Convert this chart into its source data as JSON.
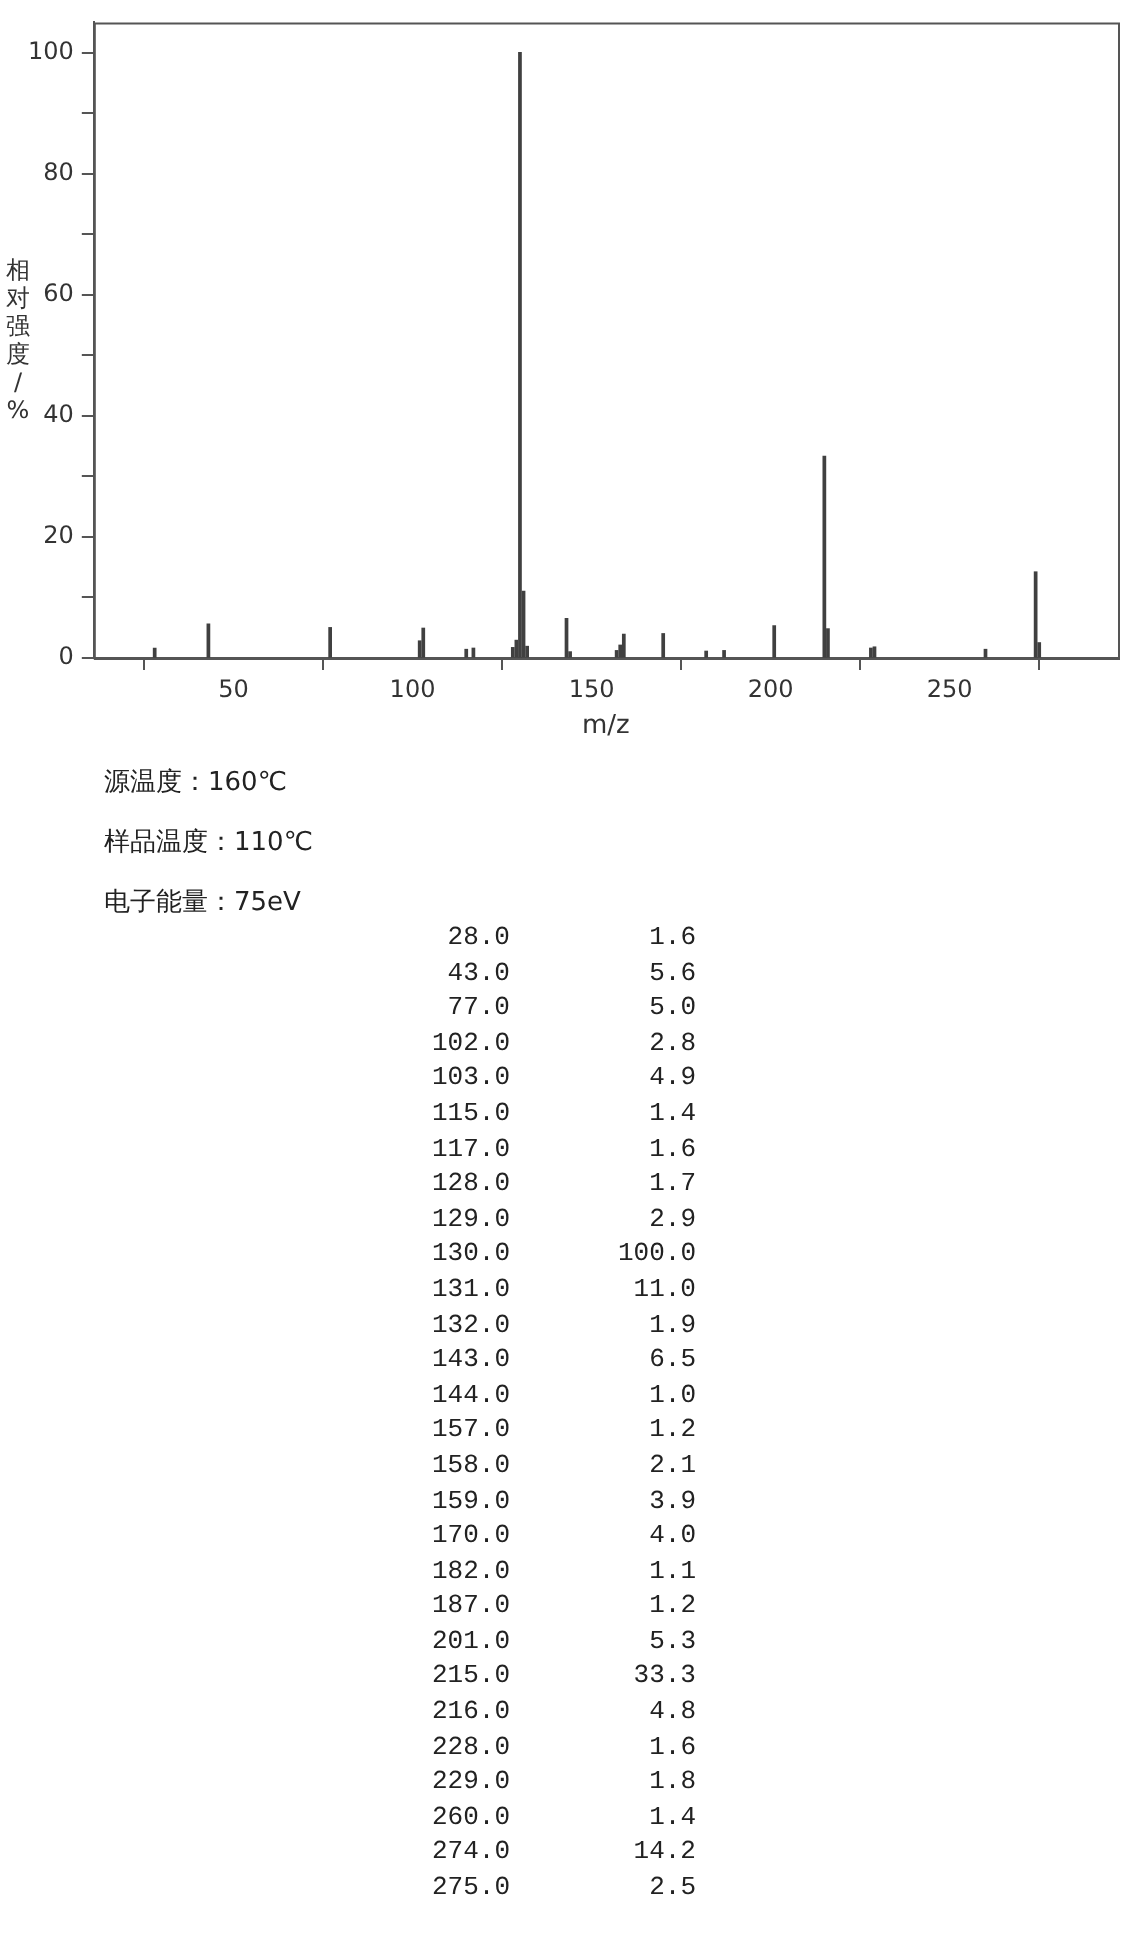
{
  "chart_data": [
    {
      "type": "bar",
      "xlabel": "m/z",
      "ylabel": "相对强度/%",
      "x": [
        28,
        43,
        77,
        102,
        103,
        115,
        117,
        128,
        129,
        130,
        131,
        132,
        143,
        144,
        157,
        158,
        159,
        170,
        182,
        187,
        201,
        215,
        216,
        228,
        229,
        260,
        274,
        275
      ],
      "values": [
        1.6,
        5.6,
        5.0,
        2.8,
        4.9,
        1.4,
        1.6,
        1.7,
        2.9,
        100.0,
        11.0,
        1.9,
        6.5,
        1.0,
        1.2,
        2.1,
        3.9,
        4.0,
        1.1,
        1.2,
        5.3,
        33.3,
        4.8,
        1.6,
        1.8,
        1.4,
        14.2,
        2.5
      ],
      "color": "#404040",
      "xlim": [
        11,
        297
      ],
      "xticks": [
        50,
        100,
        150,
        200,
        250
      ],
      "ylim": [
        0,
        105
      ],
      "yticks": [
        0,
        {
          "value": 10,
          "label": null
        },
        20,
        {
          "value": 30,
          "label": null
        },
        40,
        {
          "value": 50,
          "label": null
        },
        60,
        {
          "value": 70,
          "label": null
        },
        80,
        {
          "value": 90,
          "label": null
        },
        100
      ],
      "annotations": [
        "源温度：160℃",
        "样品温度：110℃",
        "电子能量：75eV"
      ]
    },
    {
      "type": "other",
      "annotations": [
        "28.0",
        "1.6",
        "43.0",
        "5.6",
        "77.0",
        "5.0",
        "102.0",
        "2.8",
        "103.0",
        "4.9",
        "115.0",
        "1.4",
        "117.0",
        "1.6",
        "128.0",
        "1.7",
        "129.0",
        "2.9",
        "130.0",
        "100.0",
        "131.0",
        "11.0",
        "132.0",
        "1.9",
        "143.0",
        "6.5",
        "144.0",
        "1.0",
        "157.0",
        "1.2",
        "158.0",
        "2.1",
        "159.0",
        "3.9",
        "170.0",
        "4.0",
        "182.0",
        "1.1",
        "187.0",
        "1.2",
        "201.0",
        "5.3",
        "215.0",
        "33.3",
        "216.0",
        "4.8",
        "228.0",
        "1.6",
        "229.0",
        "1.8",
        "260.0",
        "1.4",
        "274.0",
        "14.2",
        "275.0",
        "2.5"
      ]
    }
  ]
}
